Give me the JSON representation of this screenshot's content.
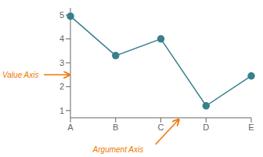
{
  "chart_data": {
    "type": "line",
    "categories": [
      "A",
      "B",
      "C",
      "D",
      "E"
    ],
    "values": [
      4.95,
      3.3,
      4.0,
      1.2,
      2.45
    ],
    "color": "#3a7f8c",
    "ylim": [
      0.7,
      5.3
    ],
    "yticks": [
      1,
      2,
      3,
      4,
      5
    ],
    "annotations": [
      {
        "text": "Value Axis",
        "axis": "y",
        "color": "#f07800"
      },
      {
        "text": "Argument Axis",
        "axis": "x",
        "color": "#f07800"
      }
    ]
  }
}
